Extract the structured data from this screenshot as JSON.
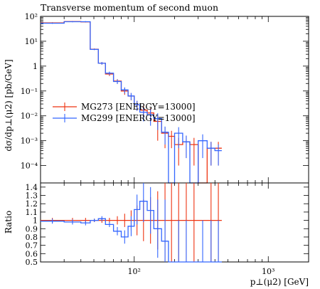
{
  "chart_data": {
    "type": "line",
    "drawstyle": "steps",
    "title": "Transverse momentum of second muon",
    "xlabel": "p⊥(μ2) [GeV]",
    "ylabel": "dσ/dp⊥(μ2) [pb/GeV]",
    "ratio_ylabel": "Ratio",
    "xscale": "log",
    "yscale": "log",
    "xlim": [
      20,
      2000
    ],
    "ylim": [
      2e-05,
      100
    ],
    "ratio_ylim": [
      0.5,
      1.45
    ],
    "x_tick_labels": [
      {
        "value": 100,
        "label": "10²"
      },
      {
        "value": 1000,
        "label": "10³"
      }
    ],
    "y_tick_labels": [
      {
        "value": 100,
        "label": "10²"
      },
      {
        "value": 10,
        "label": "10¹"
      },
      {
        "value": 1,
        "label": "1"
      },
      {
        "value": 0.1,
        "label": "10⁻¹"
      },
      {
        "value": 0.01,
        "label": "10⁻²"
      },
      {
        "value": 0.001,
        "label": "10⁻³"
      },
      {
        "value": 0.0001,
        "label": "10⁻⁴"
      }
    ],
    "ratio_tick_labels": [
      "0.5",
      "0.6",
      "0.7",
      "0.8",
      "0.9",
      "1",
      "1.1",
      "1.2",
      "1.3",
      "1.4"
    ],
    "legend_position": "center-left",
    "bin_edges": [
      20,
      30,
      40,
      47,
      54,
      61,
      70,
      80,
      90,
      100,
      110,
      125,
      140,
      160,
      180,
      200,
      230,
      260,
      300,
      350,
      400,
      450
    ],
    "series": [
      {
        "name": "MG273 [ENERGY=13000]",
        "color": "#ee3311",
        "values": [
          55,
          62,
          60,
          4.8,
          1.3,
          0.48,
          0.25,
          0.1,
          0.062,
          0.028,
          0.017,
          0.013,
          0.006,
          0.002,
          0.0015,
          0.0007,
          0.0009,
          0.0007,
          1e-05,
          0.0005,
          0.0005
        ],
        "errors": [
          3,
          3,
          3,
          0.3,
          0.15,
          0.08,
          0.05,
          0.03,
          0.02,
          0.012,
          0.008,
          0.007,
          0.005,
          0.0015,
          0.001,
          0.0006,
          0.0007,
          0.0006,
          0,
          0.0004,
          0.0004
        ]
      },
      {
        "name": "MG299 [ENERGY=13000]",
        "color": "#3366ff",
        "values": [
          53,
          61,
          61,
          4.7,
          1.3,
          0.52,
          0.24,
          0.11,
          0.063,
          0.028,
          0.014,
          0.011,
          0.0077,
          0.0022,
          1e-05,
          0.002,
          0.0009,
          1e-05,
          0.001,
          0.0005,
          0.0004
        ],
        "errors": [
          3,
          3,
          3,
          0.3,
          0.15,
          0.08,
          0.05,
          0.03,
          0.02,
          0.012,
          0.008,
          0.007,
          0.005,
          0.0015,
          0,
          0.0015,
          0.0007,
          0,
          0.0008,
          0.0004,
          0.0003
        ]
      }
    ],
    "ratio": {
      "series": [
        {
          "name": "MG273 [ENERGY=13000]",
          "values": [
            1,
            1,
            1,
            1,
            1,
            1,
            1,
            1,
            1,
            1,
            1,
            1,
            1,
            1,
            1,
            1,
            1,
            1,
            1,
            1,
            1
          ],
          "errors": [
            0.03,
            0.03,
            0.03,
            0.02,
            0.03,
            0.03,
            0.05,
            0.08,
            0.12,
            0.18,
            0.25,
            0.28,
            0.35,
            0.5,
            0.5,
            0.5,
            0.6,
            0.6,
            0,
            0.5,
            0.5
          ]
        },
        {
          "name": "MG299 [ENERGY=13000]",
          "values": [
            0.99,
            0.98,
            0.97,
            1.0,
            1.02,
            0.95,
            0.87,
            0.8,
            0.93,
            1.13,
            1.23,
            1.12,
            0.9,
            0.75,
            0.5,
            0.5,
            0.5,
            0.5,
            0.5,
            0.5,
            0.5
          ],
          "errors": [
            0.03,
            0.03,
            0.03,
            0.02,
            0.03,
            0.03,
            0.05,
            0.08,
            0.12,
            0.18,
            0.25,
            0.28,
            0.35,
            0.5,
            0,
            0.5,
            0.5,
            0,
            0.5,
            0.5,
            0.5
          ]
        }
      ]
    }
  }
}
